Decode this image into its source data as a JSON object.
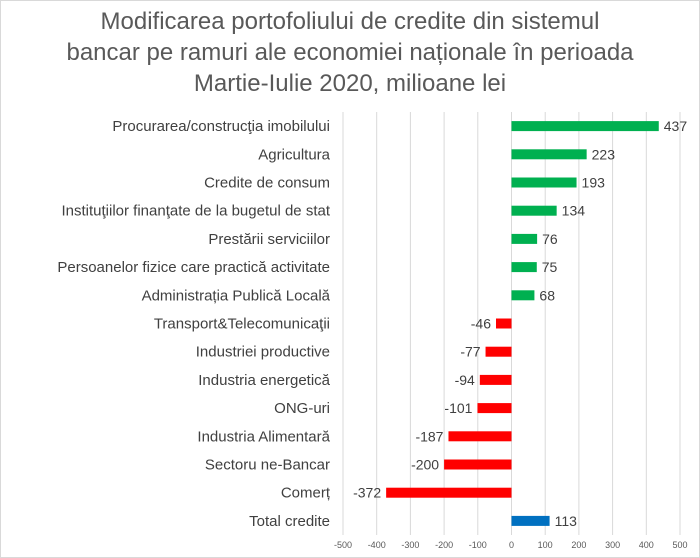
{
  "chart_data": {
    "type": "bar",
    "orientation": "horizontal",
    "title_lines": [
      "Modificarea portofoliului de credite din sistemul",
      "bancar pe ramuri ale economiei naționale în perioada",
      "Martie-Iulie 2020, milioane lei"
    ],
    "categories": [
      "Procurarea/construcţia imobilului",
      "Agricultura",
      "Credite de consum",
      "Instituţiilor finanţate de la bugetul de stat",
      "Prestării serviciilor",
      "Persoanelor fizice care practică activitate",
      "Administrația Publică Locală",
      "Transport&Telecomunicaţii",
      "Industriei productive",
      "Industria energetică",
      "ONG-uri",
      "Industria Alimentară",
      "Sectoru ne-Bancar",
      "Comerț",
      "Total credite"
    ],
    "values": [
      437,
      223,
      193,
      134,
      76,
      75,
      68,
      -46,
      -77,
      -94,
      -101,
      -187,
      -200,
      -372,
      113
    ],
    "xlim": [
      -500,
      500
    ],
    "xticks": [
      -500,
      -400,
      -300,
      -200,
      -100,
      0,
      100,
      200,
      300,
      400,
      500
    ],
    "grid": true,
    "colors": {
      "positive": "#00b050",
      "negative": "#ff0000",
      "total": "#0070c0"
    }
  }
}
